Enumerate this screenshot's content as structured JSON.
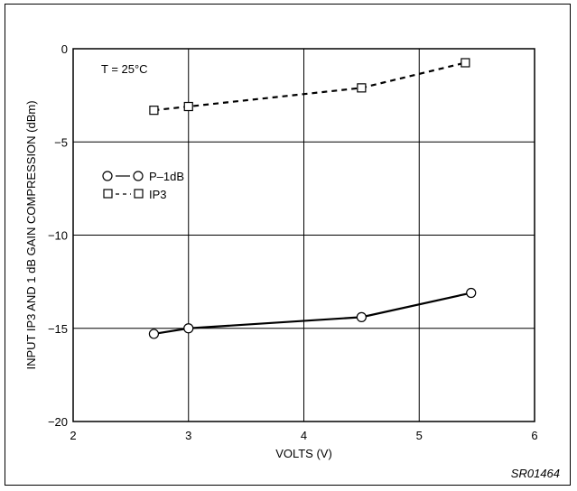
{
  "chart_data": {
    "type": "line",
    "title": "",
    "xlabel": "VOLTS (V)",
    "ylabel": "INPUT IP3 AND 1 dB GAIN COMPRESSION (dBm)",
    "xlim": [
      2,
      6
    ],
    "ylim": [
      -20,
      0
    ],
    "xticks": [
      "2",
      "3",
      "4",
      "5",
      "6"
    ],
    "yticks": [
      "0",
      "−5",
      "−10",
      "−15",
      "−20"
    ],
    "grid": true,
    "legend_position": "center-left",
    "annotation": "T = 25°C",
    "series": [
      {
        "name": "P–1dB",
        "marker": "circle",
        "line_style": "solid",
        "color": "#000000",
        "points": [
          [
            2.7,
            -15.3
          ],
          [
            3.0,
            -15.0
          ],
          [
            4.5,
            -14.4
          ],
          [
            5.45,
            -13.1
          ]
        ]
      },
      {
        "name": "IP3",
        "marker": "square",
        "line_style": "dashed",
        "color": "#000000",
        "points": [
          [
            2.7,
            -3.3
          ],
          [
            3.0,
            -3.1
          ],
          [
            4.5,
            -2.1
          ],
          [
            5.4,
            -0.75
          ]
        ]
      }
    ]
  },
  "figure_code": "SR01464"
}
